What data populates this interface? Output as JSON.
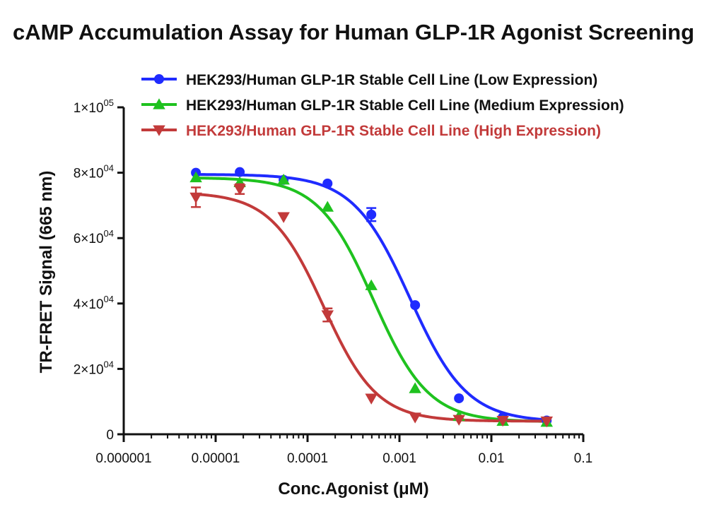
{
  "chart_data": {
    "type": "scatter",
    "title": "cAMP Accumulation Assay for Human GLP-1R Agonist Screening",
    "xlabel": "Conc.Agonist (μM)",
    "ylabel": "TR-FRET Signal (665 nm)",
    "x_scale": "log",
    "xlim": [
      1e-06,
      0.1
    ],
    "ylim": [
      0,
      100000
    ],
    "x_ticks": [
      "0.000001",
      "0.00001",
      "0.0001",
      "0.001",
      "0.01",
      "0.1"
    ],
    "y_ticks": [
      {
        "value": 0,
        "mantissa": "0",
        "exponent": ""
      },
      {
        "value": 20000,
        "mantissa": "2×10",
        "exponent": "04"
      },
      {
        "value": 40000,
        "mantissa": "4×10",
        "exponent": "04"
      },
      {
        "value": 60000,
        "mantissa": "6×10",
        "exponent": "04"
      },
      {
        "value": 80000,
        "mantissa": "8×10",
        "exponent": "04"
      },
      {
        "value": 100000,
        "mantissa": "1×10",
        "exponent": "05"
      }
    ],
    "legend_position": "top",
    "grid": false,
    "series": [
      {
        "name": "HEK293/Human GLP-1R Stable Cell Line (Low Expression)",
        "color": "#1f2bff",
        "marker": "circle",
        "x": [
          6.1e-06,
          1.83e-05,
          5.49e-05,
          0.000165,
          0.000494,
          0.00148,
          0.00444,
          0.0133,
          0.04
        ],
        "y": [
          80000,
          80200,
          77800,
          76700,
          67200,
          39500,
          11000,
          5200,
          4200
        ],
        "error": [
          300,
          300,
          300,
          300,
          2000,
          600,
          300,
          300,
          200
        ],
        "fit": {
          "top": 79500,
          "bottom": 3800,
          "ec50": 0.0013,
          "hill": 1.4
        }
      },
      {
        "name": "HEK293/Human GLP-1R Stable Cell Line (Medium Expression)",
        "color": "#1fc21f",
        "marker": "triangle-up",
        "x": [
          6.1e-06,
          1.83e-05,
          5.49e-05,
          0.000165,
          0.000494,
          0.00148,
          0.00444,
          0.0133,
          0.04
        ],
        "y": [
          78500,
          77000,
          77800,
          69500,
          45500,
          14000,
          5500,
          4000,
          3700
        ],
        "error": [
          300,
          300,
          300,
          300,
          300,
          300,
          200,
          200,
          200
        ],
        "fit": {
          "top": 78500,
          "bottom": 3800,
          "ec50": 0.00052,
          "hill": 1.45
        }
      },
      {
        "name": "HEK293/Human GLP-1R Stable Cell Line (High Expression)",
        "color": "#c23a3a",
        "marker": "triangle-down",
        "x": [
          6.1e-06,
          1.83e-05,
          5.49e-05,
          0.000165,
          0.000494,
          0.00148,
          0.00444,
          0.0133,
          0.04
        ],
        "y": [
          72500,
          75000,
          66500,
          36500,
          11000,
          5200,
          4500,
          4200,
          4000
        ],
        "error": [
          3000,
          1500,
          300,
          2000,
          300,
          300,
          200,
          200,
          200
        ],
        "fit": {
          "top": 74000,
          "bottom": 4000,
          "ec50": 0.00015,
          "hill": 1.5
        }
      }
    ]
  }
}
